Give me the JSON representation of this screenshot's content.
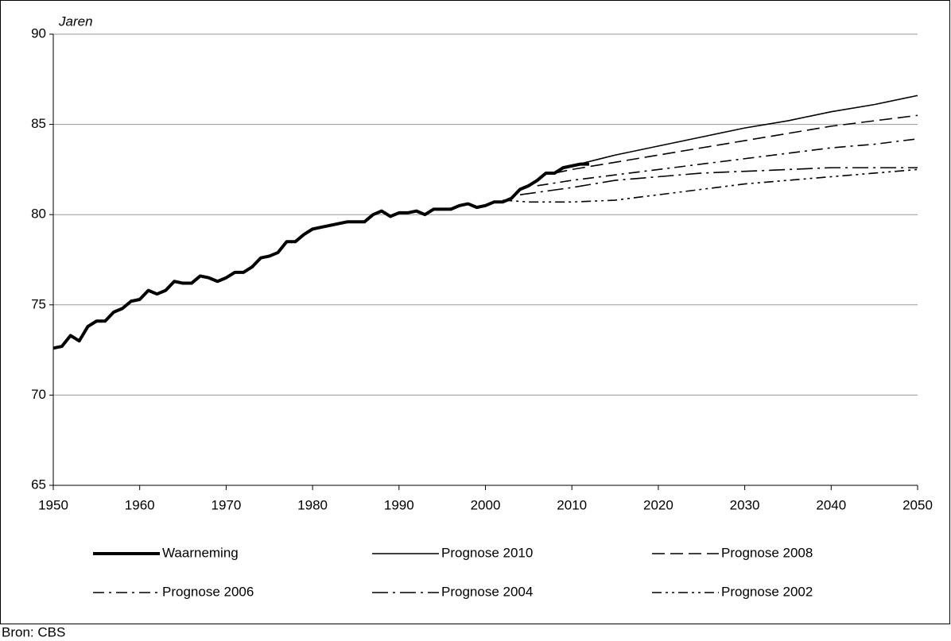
{
  "chart_data": {
    "type": "line",
    "y_label": "Jaren",
    "source": "Bron: CBS",
    "xlim": [
      1950,
      2050
    ],
    "xticks": [
      1950,
      1960,
      1970,
      1980,
      1990,
      2000,
      2010,
      2020,
      2030,
      2040,
      2050
    ],
    "ylim": [
      65,
      90
    ],
    "yticks": [
      65,
      70,
      75,
      80,
      85,
      90
    ],
    "grid": true,
    "legend": "bottom",
    "series": [
      {
        "name": "Waarneming",
        "color": "#000000",
        "dash": "solid",
        "weight": "thick",
        "x": [
          1950,
          1951,
          1952,
          1953,
          1954,
          1955,
          1956,
          1957,
          1958,
          1959,
          1960,
          1961,
          1962,
          1963,
          1964,
          1965,
          1966,
          1967,
          1968,
          1969,
          1970,
          1971,
          1972,
          1973,
          1974,
          1975,
          1976,
          1977,
          1978,
          1979,
          1980,
          1981,
          1982,
          1983,
          1984,
          1985,
          1986,
          1987,
          1988,
          1989,
          1990,
          1991,
          1992,
          1993,
          1994,
          1995,
          1996,
          1997,
          1998,
          1999,
          2000,
          2001,
          2002,
          2003,
          2004,
          2005,
          2006,
          2007,
          2008,
          2009,
          2010,
          2011,
          2012
        ],
        "values": [
          72.6,
          72.7,
          73.3,
          73.0,
          73.8,
          74.1,
          74.1,
          74.6,
          74.8,
          75.2,
          75.3,
          75.8,
          75.6,
          75.8,
          76.3,
          76.2,
          76.2,
          76.6,
          76.5,
          76.3,
          76.5,
          76.8,
          76.8,
          77.1,
          77.6,
          77.7,
          77.9,
          78.5,
          78.5,
          78.9,
          79.2,
          79.3,
          79.4,
          79.5,
          79.6,
          79.6,
          79.6,
          80.0,
          80.2,
          79.9,
          80.1,
          80.1,
          80.2,
          80.0,
          80.3,
          80.3,
          80.3,
          80.5,
          80.6,
          80.4,
          80.5,
          80.7,
          80.7,
          80.9,
          81.4,
          81.6,
          81.9,
          82.3,
          82.3,
          82.6,
          82.7,
          82.8,
          82.8
        ]
      },
      {
        "name": "Prognose 2010",
        "color": "#000000",
        "dash": "solid",
        "weight": "thin",
        "x": [
          2010,
          2015,
          2020,
          2025,
          2030,
          2035,
          2040,
          2045,
          2050
        ],
        "values": [
          82.7,
          83.3,
          83.8,
          84.3,
          84.8,
          85.2,
          85.7,
          86.1,
          86.6
        ]
      },
      {
        "name": "Prognose 2008",
        "color": "#000000",
        "dash": "dashed",
        "weight": "thin",
        "x": [
          2008,
          2010,
          2015,
          2020,
          2025,
          2030,
          2035,
          2040,
          2045,
          2050
        ],
        "values": [
          82.3,
          82.5,
          82.9,
          83.3,
          83.7,
          84.1,
          84.5,
          84.9,
          85.2,
          85.5
        ]
      },
      {
        "name": "Prognose 2006",
        "color": "#000000",
        "dash": "dash-dot",
        "weight": "thin",
        "x": [
          2006,
          2010,
          2015,
          2020,
          2025,
          2030,
          2035,
          2040,
          2045,
          2050
        ],
        "values": [
          81.6,
          81.9,
          82.2,
          82.5,
          82.8,
          83.1,
          83.4,
          83.7,
          83.9,
          84.2
        ]
      },
      {
        "name": "Prognose 2004",
        "color": "#000000",
        "dash": "long-dash-dot",
        "weight": "thin",
        "x": [
          2004,
          2010,
          2015,
          2020,
          2025,
          2030,
          2035,
          2040,
          2045,
          2050
        ],
        "values": [
          81.1,
          81.5,
          81.9,
          82.1,
          82.3,
          82.4,
          82.5,
          82.6,
          82.6,
          82.6
        ]
      },
      {
        "name": "Prognose 2002",
        "color": "#000000",
        "dash": "dash-dot-dot",
        "weight": "thin",
        "x": [
          2002,
          2005,
          2010,
          2015,
          2020,
          2025,
          2030,
          2035,
          2040,
          2045,
          2050
        ],
        "values": [
          80.8,
          80.7,
          80.7,
          80.8,
          81.1,
          81.4,
          81.7,
          81.9,
          82.1,
          82.3,
          82.5
        ]
      }
    ]
  }
}
